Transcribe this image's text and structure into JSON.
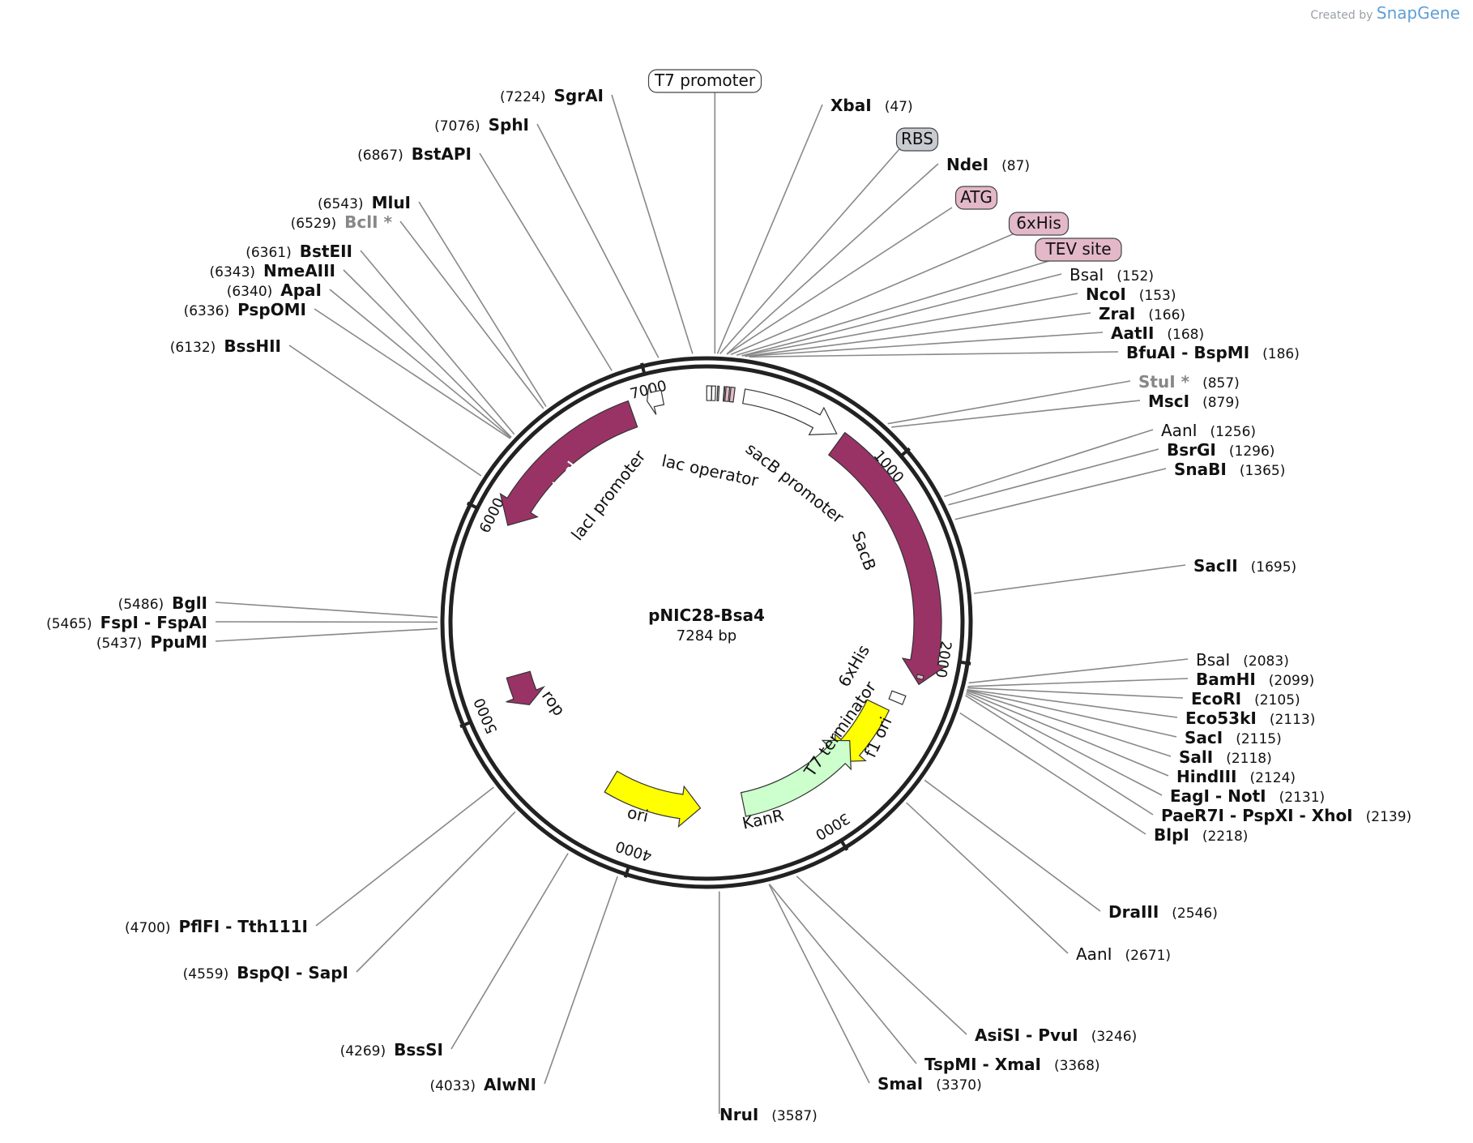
{
  "credit": {
    "prefix": "Created by",
    "brand": "SnapGene"
  },
  "plasmid": {
    "name": "pNIC28-Bsa4",
    "length_label": "7284 bp",
    "length": 7284
  },
  "ticks": [
    {
      "label": "1000",
      "bp": 1000
    },
    {
      "label": "2000",
      "bp": 2000
    },
    {
      "label": "3000",
      "bp": 3000
    },
    {
      "label": "4000",
      "bp": 4000
    },
    {
      "label": "5000",
      "bp": 5000
    },
    {
      "label": "6000",
      "bp": 6000
    },
    {
      "label": "7000",
      "bp": 7000
    }
  ],
  "features": [
    {
      "name": "lacI",
      "start": 6890,
      "end": 5990,
      "color": "#993366",
      "kind": "arrow"
    },
    {
      "name": "lacI promoter",
      "start": 7060,
      "end": 6980,
      "color": "#ffffff",
      "kind": "arrow"
    },
    {
      "name": "lac operator",
      "start": 1,
      "end": 25,
      "color": "#ffffff",
      "kind": "box"
    },
    {
      "name": "T7 promoter",
      "start": 26,
      "end": 45,
      "color": "#ffffff",
      "kind": "box"
    },
    {
      "name": "RBS",
      "start": 55,
      "end": 62,
      "color": "#c8c8c8",
      "kind": "box"
    },
    {
      "name": "ATG",
      "start": 87,
      "end": 90,
      "color": "#e3b8c8",
      "kind": "box"
    },
    {
      "name": "6xHis",
      "start": 96,
      "end": 114,
      "color": "#e3b8c8",
      "kind": "box"
    },
    {
      "name": "TEV site",
      "start": 120,
      "end": 140,
      "color": "#e3b8c8",
      "kind": "box"
    },
    {
      "name": "sacB promoter",
      "start": 190,
      "end": 700,
      "color": "#ffffff",
      "kind": "arrow"
    },
    {
      "name": "SacB",
      "start": 730,
      "end": 2150,
      "color": "#993366",
      "kind": "arrow"
    },
    {
      "name": "6xHis",
      "start": 2100,
      "end": 2120,
      "color": "#e3b8c8",
      "kind": "box"
    },
    {
      "name": "T7 terminator",
      "start": 2230,
      "end": 2280,
      "color": "#ffffff",
      "kind": "box"
    },
    {
      "name": "f1 ori",
      "start": 2340,
      "end": 2770,
      "color": "#ffff00",
      "kind": "arrow"
    },
    {
      "name": "KanR",
      "start": 3410,
      "end": 2620,
      "color": "#ccffcc",
      "kind": "arrow",
      "reverse": true
    },
    {
      "name": "ori",
      "start": 4270,
      "end": 3680,
      "color": "#ffff00",
      "kind": "arrow"
    },
    {
      "name": "rop",
      "start": 5150,
      "end": 4960,
      "color": "#993366",
      "kind": "arrow"
    }
  ],
  "sites": [
    {
      "name": "SgrAI",
      "pos": 7224,
      "pos_label": "(7224)",
      "side": "L"
    },
    {
      "name": "SphI",
      "pos": 7076,
      "pos_label": "(7076)",
      "side": "L"
    },
    {
      "name": "BstAPI",
      "pos": 6867,
      "pos_label": "(6867)",
      "side": "L"
    },
    {
      "name": "MluI",
      "pos": 6543,
      "pos_label": "(6543)",
      "side": "L"
    },
    {
      "name": "BclI *",
      "pos": 6529,
      "pos_label": "(6529)",
      "side": "L",
      "gray": true
    },
    {
      "name": "BstEII",
      "pos": 6361,
      "pos_label": "(6361)",
      "side": "L"
    },
    {
      "name": "NmeAIII",
      "pos": 6343,
      "pos_label": "(6343)",
      "side": "L"
    },
    {
      "name": "ApaI",
      "pos": 6340,
      "pos_label": "(6340)",
      "side": "L"
    },
    {
      "name": "PspOMI",
      "pos": 6336,
      "pos_label": "(6336)",
      "side": "L"
    },
    {
      "name": "BssHII",
      "pos": 6132,
      "pos_label": "(6132)",
      "side": "L"
    },
    {
      "name": "BglI",
      "pos": 5486,
      "pos_label": "(5486)",
      "side": "L"
    },
    {
      "name": "FspI - FspAI",
      "pos": 5465,
      "pos_label": "(5465)",
      "side": "L"
    },
    {
      "name": "PpuMI",
      "pos": 5437,
      "pos_label": "(5437)",
      "side": "L"
    },
    {
      "name": "PflFI - Tth111I",
      "pos": 4700,
      "pos_label": "(4700)",
      "side": "L"
    },
    {
      "name": "BspQI - SapI",
      "pos": 4559,
      "pos_label": "(4559)",
      "side": "L"
    },
    {
      "name": "BssSI",
      "pos": 4269,
      "pos_label": "(4269)",
      "side": "L"
    },
    {
      "name": "AlwNI",
      "pos": 4033,
      "pos_label": "(4033)",
      "side": "L"
    },
    {
      "name": "NruI",
      "pos": 3587,
      "pos_label": "(3587)",
      "side": "R"
    },
    {
      "name": "XbaI",
      "pos": 47,
      "pos_label": "(47)",
      "side": "R"
    },
    {
      "name": "NdeI",
      "pos": 87,
      "pos_label": "(87)",
      "side": "R"
    },
    {
      "name": "BsaI",
      "pos": 152,
      "pos_label": "(152)",
      "side": "R",
      "light": true
    },
    {
      "name": "NcoI",
      "pos": 153,
      "pos_label": "(153)",
      "side": "R"
    },
    {
      "name": "ZraI",
      "pos": 166,
      "pos_label": "(166)",
      "side": "R"
    },
    {
      "name": "AatII",
      "pos": 168,
      "pos_label": "(168)",
      "side": "R"
    },
    {
      "name": "BfuAI - BspMI",
      "pos": 186,
      "pos_label": "(186)",
      "side": "R"
    },
    {
      "name": "StuI *",
      "pos": 857,
      "pos_label": "(857)",
      "side": "R",
      "gray": true
    },
    {
      "name": "MscI",
      "pos": 879,
      "pos_label": "(879)",
      "side": "R"
    },
    {
      "name": "AanI",
      "pos": 1256,
      "pos_label": "(1256)",
      "side": "R",
      "light": true
    },
    {
      "name": "BsrGI",
      "pos": 1296,
      "pos_label": "(1296)",
      "side": "R"
    },
    {
      "name": "SnaBI",
      "pos": 1365,
      "pos_label": "(1365)",
      "side": "R"
    },
    {
      "name": "SacII",
      "pos": 1695,
      "pos_label": "(1695)",
      "side": "R"
    },
    {
      "name": "BsaI",
      "pos": 2083,
      "pos_label": "(2083)",
      "side": "R",
      "light": true
    },
    {
      "name": "BamHI",
      "pos": 2099,
      "pos_label": "(2099)",
      "side": "R"
    },
    {
      "name": "EcoRI",
      "pos": 2105,
      "pos_label": "(2105)",
      "side": "R"
    },
    {
      "name": "Eco53kI",
      "pos": 2113,
      "pos_label": "(2113)",
      "side": "R"
    },
    {
      "name": "SacI",
      "pos": 2115,
      "pos_label": "(2115)",
      "side": "R"
    },
    {
      "name": "SalI",
      "pos": 2118,
      "pos_label": "(2118)",
      "side": "R"
    },
    {
      "name": "HindIII",
      "pos": 2124,
      "pos_label": "(2124)",
      "side": "R"
    },
    {
      "name": "EagI - NotI",
      "pos": 2131,
      "pos_label": "(2131)",
      "side": "R"
    },
    {
      "name": "PaeR7I - PspXI - XhoI",
      "pos": 2139,
      "pos_label": "(2139)",
      "side": "R"
    },
    {
      "name": "BlpI",
      "pos": 2218,
      "pos_label": "(2218)",
      "side": "R"
    },
    {
      "name": "DraIII",
      "pos": 2546,
      "pos_label": "(2546)",
      "side": "R"
    },
    {
      "name": "AanI",
      "pos": 2671,
      "pos_label": "(2671)",
      "side": "R",
      "light": true
    },
    {
      "name": "AsiSI - PvuI",
      "pos": 3246,
      "pos_label": "(3246)",
      "side": "R"
    },
    {
      "name": "TspMI - XmaI",
      "pos": 3368,
      "pos_label": "(3368)",
      "side": "R"
    },
    {
      "name": "SmaI",
      "pos": 3370,
      "pos_label": "(3370)",
      "side": "R"
    }
  ],
  "callouts": [
    {
      "name": "T7 promoter",
      "bp": 36,
      "fill": "#ffffff"
    },
    {
      "name": "RBS",
      "bp": 58,
      "fill": "#c8ccd0"
    },
    {
      "name": "ATG",
      "bp": 88,
      "fill": "#e3b8c8"
    },
    {
      "name": "6xHis",
      "bp": 105,
      "fill": "#e3b8c8"
    },
    {
      "name": "TEV site",
      "bp": 130,
      "fill": "#e3b8c8"
    }
  ]
}
